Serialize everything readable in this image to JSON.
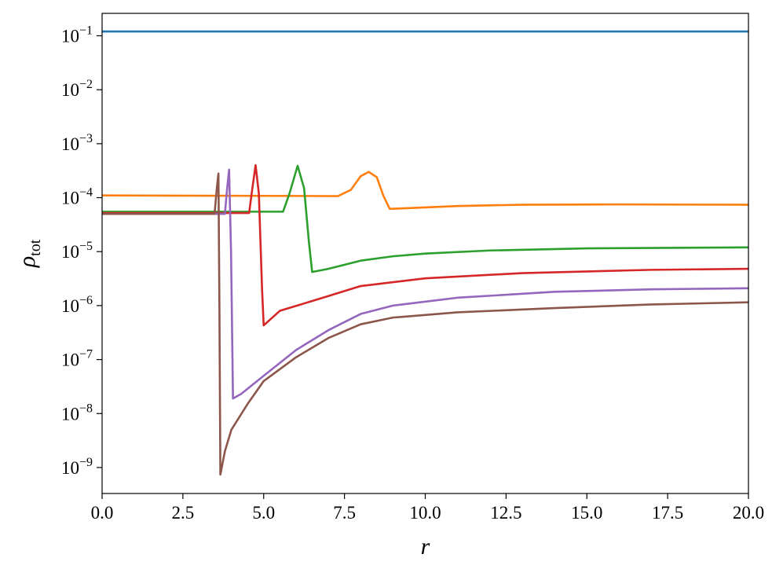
{
  "chart_data": {
    "type": "line",
    "x_label": "r",
    "y_label": "ρtot",
    "log_y": true,
    "grid": false,
    "xlim": [
      0,
      20
    ],
    "ylim": [
      3.3e-10,
      0.26
    ],
    "xticks": [
      {
        "value": 0,
        "label": "0.0"
      },
      2.5,
      {
        "value": 5,
        "label": "5.0"
      },
      7.5,
      {
        "value": 10,
        "label": "10.0"
      },
      12.5,
      {
        "value": 15,
        "label": "15.0"
      },
      17.5,
      {
        "value": 20,
        "label": "20.0"
      }
    ],
    "yticks": [
      {
        "value": 1e-09,
        "label": "10−9"
      },
      {
        "value": 1e-08,
        "label": "10−8"
      },
      {
        "value": 1e-07,
        "label": "10−7"
      },
      {
        "value": 1e-06,
        "label": "10−6"
      },
      {
        "value": 1e-05,
        "label": "10−5"
      },
      {
        "value": 0.0001,
        "label": "10−4"
      },
      {
        "value": 0.001,
        "label": "10−3"
      },
      {
        "value": 0.01,
        "label": "10−2"
      },
      {
        "value": 0.1,
        "label": "10−1"
      }
    ],
    "series": [
      {
        "color": "#1f77b4",
        "x": [
          0,
          5,
          10,
          15,
          20
        ],
        "values": [
          0.12,
          0.12,
          0.12,
          0.12,
          0.12
        ]
      },
      {
        "color": "#ff7f0e",
        "x": [
          0,
          5,
          7.3,
          7.7,
          8.0,
          8.25,
          8.5,
          8.7,
          8.9,
          9.5,
          11,
          13,
          16,
          20
        ],
        "values": [
          0.00011,
          0.000108,
          0.000107,
          0.00014,
          0.00025,
          0.0003,
          0.00024,
          0.00011,
          6.2e-05,
          6.4e-05,
          7e-05,
          7.4e-05,
          7.5e-05,
          7.4e-05
        ]
      },
      {
        "color": "#2ca02c",
        "x": [
          0,
          5.6,
          5.8,
          6.05,
          6.25,
          6.4,
          6.5,
          7,
          8,
          9,
          10,
          12,
          15,
          20
        ],
        "values": [
          5.5e-05,
          5.5e-05,
          0.00012,
          0.00039,
          0.00015,
          1.5e-05,
          4.2e-06,
          4.8e-06,
          6.8e-06,
          8.2e-06,
          9.2e-06,
          1.05e-05,
          1.15e-05,
          1.2e-05
        ]
      },
      {
        "color": "#d62728",
        "x": [
          0,
          4.55,
          4.65,
          4.75,
          4.85,
          4.95,
          5.0,
          5.5,
          7,
          8,
          10,
          13,
          17,
          20
        ],
        "values": [
          5.2e-05,
          5.2e-05,
          0.00015,
          0.0004,
          0.00012,
          2e-06,
          4.3e-07,
          8e-07,
          1.5e-06,
          2.3e-06,
          3.2e-06,
          4e-06,
          4.6e-06,
          4.8e-06
        ]
      },
      {
        "color": "#9467bd",
        "x": [
          0,
          3.8,
          3.87,
          3.93,
          3.99,
          4.05,
          4.3,
          5,
          6,
          7,
          8,
          9,
          11,
          14,
          17,
          20
        ],
        "values": [
          5e-05,
          5e-05,
          0.00015,
          0.00033,
          1e-05,
          1.9e-08,
          2.3e-08,
          5e-08,
          1.5e-07,
          3.5e-07,
          7e-07,
          1e-06,
          1.4e-06,
          1.8e-06,
          2e-06,
          2.1e-06
        ]
      },
      {
        "color": "#8c564b",
        "x": [
          0,
          3.48,
          3.55,
          3.6,
          3.63,
          3.66,
          3.8,
          4.0,
          4.5,
          5,
          6,
          7,
          8,
          9,
          11,
          14,
          17,
          20
        ],
        "values": [
          5e-05,
          5e-05,
          0.00015,
          0.00028,
          1e-06,
          7.4e-10,
          2e-09,
          5e-09,
          1.5e-08,
          4e-08,
          1.1e-07,
          2.5e-07,
          4.5e-07,
          6e-07,
          7.5e-07,
          9e-07,
          1.05e-06,
          1.15e-06
        ]
      }
    ]
  }
}
